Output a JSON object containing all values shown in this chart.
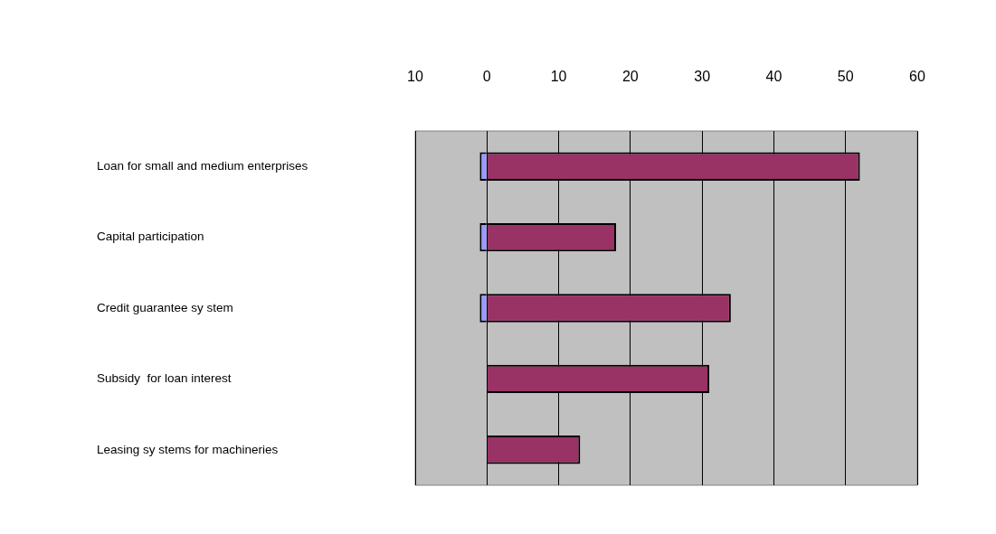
{
  "chart_data": {
    "type": "bar",
    "orientation": "horizontal",
    "stacked": true,
    "categories": [
      "Loan for small and medium enterprises",
      "Capital participation",
      "Credit guarantee sy stem",
      "Subsidy  for loan interest",
      "Leasing sy stems for machineries"
    ],
    "series": [
      {
        "color": "#9999ff",
        "values": [
          -1,
          -1,
          -1,
          null,
          null
        ]
      },
      {
        "color": "#993366",
        "values": [
          52,
          18,
          34,
          31,
          13
        ]
      }
    ],
    "xlim": [
      -10,
      60
    ],
    "xticks": [
      {
        "value": -10,
        "label": "10"
      },
      0,
      10,
      20,
      30,
      40,
      50,
      60
    ],
    "grid": "x",
    "legend": false
  }
}
